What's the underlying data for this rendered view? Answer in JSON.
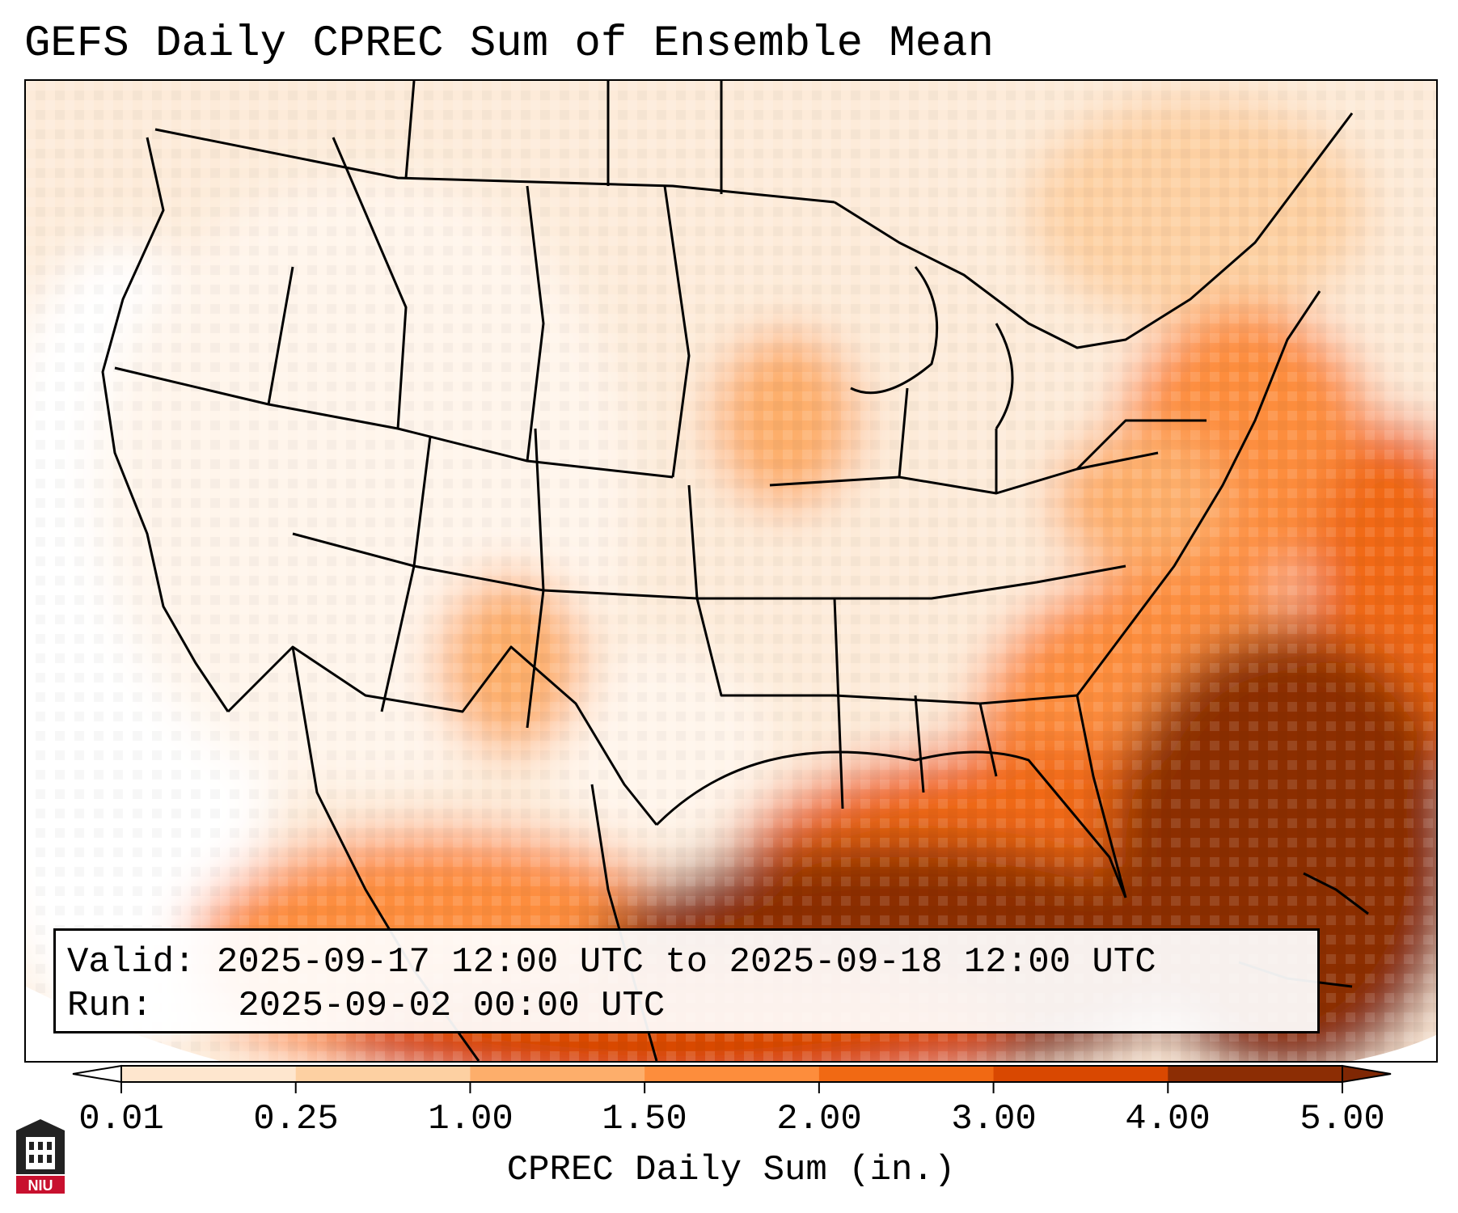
{
  "title": "GEFS Daily CPREC Sum of Ensemble Mean",
  "info": {
    "valid_label": "Valid:",
    "valid_value": "2025-09-17 12:00 UTC to 2025-09-18 12:00 UTC",
    "run_label": "Run:",
    "run_value": "2025-09-02 00:00 UTC"
  },
  "colorbar": {
    "label": "CPREC Daily Sum (in.)",
    "ticks": [
      "0.01",
      "0.25",
      "1.00",
      "1.50",
      "2.00",
      "3.00",
      "4.00",
      "5.00"
    ],
    "colors": [
      "#fff5eb",
      "#fee6ce",
      "#fdd0a2",
      "#fdae6b",
      "#fd8d3c",
      "#f16913",
      "#d94801",
      "#8c2d04"
    ],
    "under_color": "#ffffff",
    "over_color": "#7f2704"
  },
  "logo": {
    "text": "NIU",
    "name": "niu-logo"
  }
}
